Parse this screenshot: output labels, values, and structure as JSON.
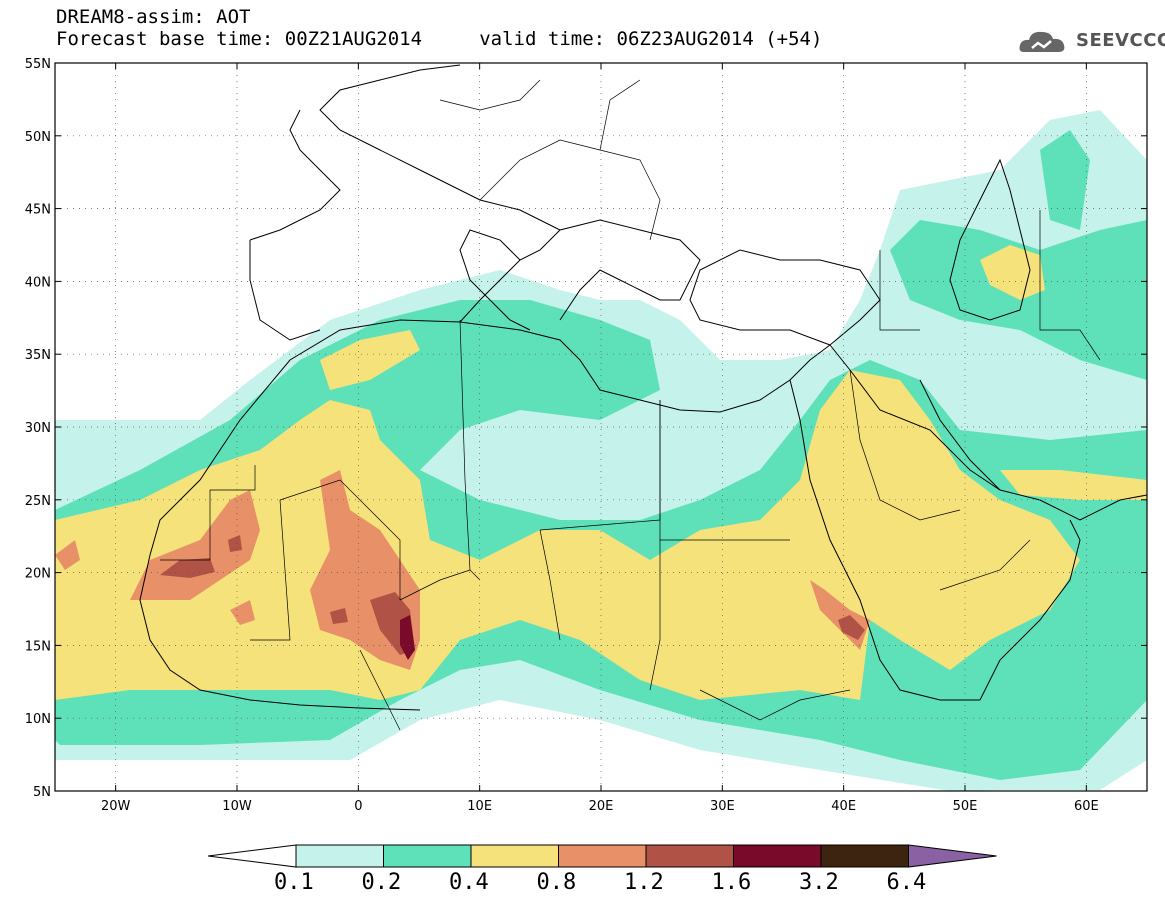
{
  "title": {
    "line1": "DREAM8-assim: AOT",
    "line2": "Forecast base time: 00Z21AUG2014     valid time: 06Z23AUG2014 (+54)"
  },
  "brand": {
    "name": "SEEVCCC",
    "icon": "cloud-logo-icon"
  },
  "map": {
    "lon_range": [
      -25,
      65
    ],
    "lat_range": [
      5,
      55
    ],
    "lat_labels": [
      "5N",
      "10N",
      "15N",
      "20N",
      "25N",
      "30N",
      "35N",
      "40N",
      "45N",
      "50N",
      "55N"
    ],
    "lon_labels": [
      "20W",
      "10W",
      "0",
      "10E",
      "20E",
      "30E",
      "40E",
      "50E",
      "60E"
    ],
    "grid": "dotted"
  },
  "colorbar": {
    "labels": [
      "0.1",
      "0.2",
      "0.4",
      "0.8",
      "1.2",
      "1.6",
      "3.2",
      "6.4"
    ],
    "colors": [
      "#ffffff",
      "#c5f2ea",
      "#5ee0b8",
      "#f6e27a",
      "#e89068",
      "#b05245",
      "#7a0a2a",
      "#3d2410",
      "#8a62a4"
    ]
  },
  "palette": {
    "c1": "#c5f2ea",
    "c2": "#5ee0b8",
    "c3": "#f6e27a",
    "c4": "#e89068",
    "c5": "#b05245",
    "c6": "#7a0a2a"
  }
}
